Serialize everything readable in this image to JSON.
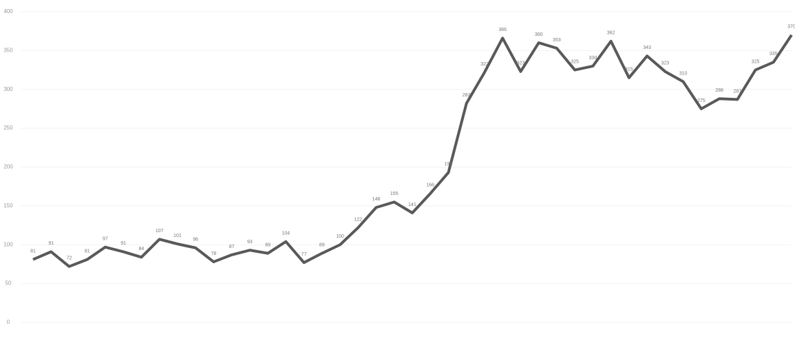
{
  "chart_data": {
    "type": "line",
    "categories": [
      null,
      null,
      null,
      null,
      null,
      null,
      null,
      null,
      null,
      null,
      null,
      null,
      null,
      null,
      null,
      null,
      null,
      null,
      null,
      null,
      null,
      null,
      null,
      null,
      null,
      null,
      null,
      null,
      null,
      null,
      null,
      null,
      null,
      null,
      null,
      null,
      null,
      null,
      null,
      null,
      null,
      null,
      null
    ],
    "values": [
      81,
      91,
      72,
      81,
      97,
      91,
      84,
      107,
      101,
      96,
      78,
      87,
      93,
      89,
      104,
      77,
      89,
      100,
      122,
      148,
      155,
      141,
      166,
      193,
      282,
      322,
      366,
      323,
      360,
      353,
      325,
      330,
      362,
      315,
      343,
      323,
      310,
      275,
      288,
      287,
      325,
      335,
      370
    ],
    "color": "#595959",
    "ylim": [
      0,
      400
    ],
    "yticks": [
      0,
      50,
      100,
      150,
      200,
      250,
      300,
      350,
      400
    ],
    "grid": true
  }
}
